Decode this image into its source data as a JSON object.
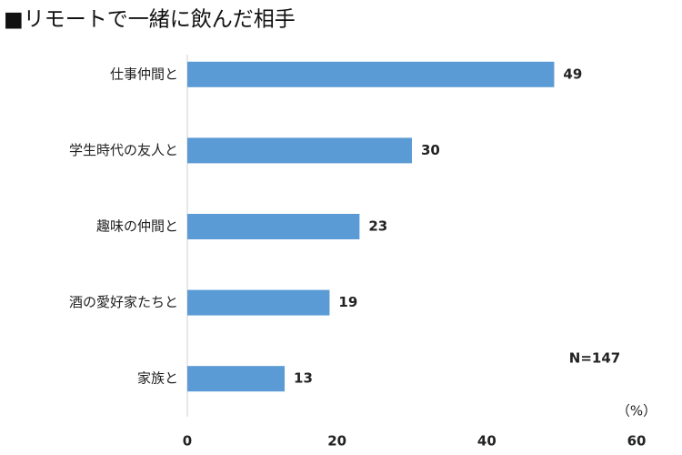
{
  "chart_data": {
    "type": "bar",
    "orientation": "horizontal",
    "title": "■リモートで一緒に飲んだ相手",
    "categories": [
      "仕事仲間と",
      "学生時代の友人と",
      "趣味の仲間と",
      "酒の愛好家たちと",
      "家族と"
    ],
    "values": [
      49,
      30,
      23,
      19,
      13
    ],
    "color": "#5b9bd5",
    "xlim": [
      0,
      60
    ],
    "xticks": [
      0,
      20,
      40,
      60
    ],
    "annotation": "N=147",
    "unit_label": "（%）"
  }
}
